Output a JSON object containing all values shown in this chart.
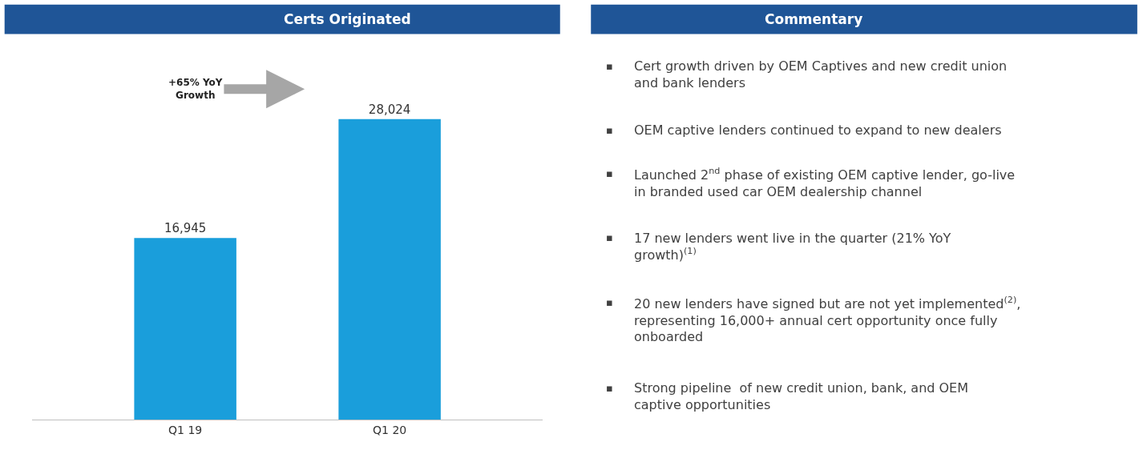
{
  "chart_data": [
    {
      "type": "bar",
      "title": "Certs Originated",
      "categories": [
        "Q1 19",
        "Q1 20"
      ],
      "values": [
        16945,
        28024
      ],
      "color": "#1a9edb",
      "value_labels": [
        "16,945",
        "28,024"
      ],
      "annotations": [
        "+65% YoY\nGrowth"
      ]
    },
    {
      "type": "other",
      "title": "Commentary",
      "annotations": [
        "▪ Cert growth driven by OEM Captives and new credit union and bank lenders",
        "▪ OEM captive lenders continued to expand to new dealers",
        "▪ Launched 2$^{nd}$ phase of existing OEM captive lender, go-live in branded used car OEM dealership channel",
        "▪ 17 new lenders went live in the quarter (21% YoY growth)$^{(1)}$",
        "▪ 20 new lenders have signed but are not yet implemented$^{(2)}$, representing 16,000+ annual cert opportunity once fully onboarded",
        "▪ Strong pipeline  of new credit union, bank, and OEM captive opportunities"
      ]
    }
  ]
}
